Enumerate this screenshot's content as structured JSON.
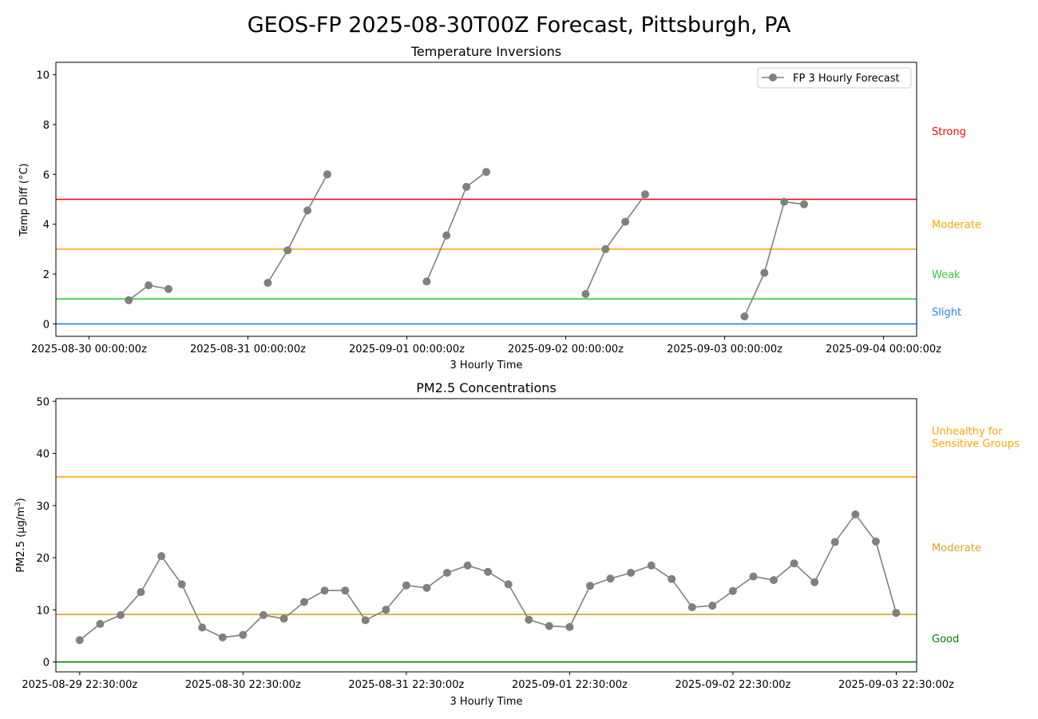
{
  "figure": {
    "title": "GEOS-FP 2025-08-30T00Z Forecast, Pittsburgh, PA"
  },
  "colors": {
    "series": "#808080",
    "axis": "#000000",
    "slight": "#1e88e5",
    "weak": "#2ecc40",
    "moderate": "#ffa500",
    "strong": "#ff0000",
    "good": "#008000",
    "moderate_pm": "#daa520",
    "usg": "#ffa500"
  },
  "chart_data": [
    {
      "type": "line",
      "title": "Temperature Inversions",
      "xlabel": "3 Hourly Time",
      "ylabel": "Temp Diff (°C)",
      "ylim": [
        -0.5,
        10.5
      ],
      "xlim": [
        "2025-08-29T19:00:00Z",
        "2025-09-04T05:00:00Z"
      ],
      "yticks": [
        0,
        2,
        4,
        6,
        8,
        10
      ],
      "xticks": [
        "2025-08-30 00:00:00z",
        "2025-08-31 00:00:00z",
        "2025-09-01 00:00:00z",
        "2025-09-02 00:00:00z",
        "2025-09-03 00:00:00z",
        "2025-09-04 00:00:00z"
      ],
      "legend": {
        "entries": [
          "FP 3 Hourly Forecast"
        ],
        "placement": "top-right"
      },
      "series": [
        {
          "name": "FP 3 Hourly Forecast",
          "segments": [
            [
              [
                "2025-08-30T06:00:00Z",
                0.95
              ],
              [
                "2025-08-30T09:00:00Z",
                1.55
              ],
              [
                "2025-08-30T12:00:00Z",
                1.4
              ]
            ],
            [
              [
                "2025-08-31T03:00:00Z",
                1.65
              ],
              [
                "2025-08-31T06:00:00Z",
                2.95
              ],
              [
                "2025-08-31T09:00:00Z",
                4.55
              ],
              [
                "2025-08-31T12:00:00Z",
                6.0
              ]
            ],
            [
              [
                "2025-09-01T03:00:00Z",
                1.7
              ],
              [
                "2025-09-01T06:00:00Z",
                3.55
              ],
              [
                "2025-09-01T09:00:00Z",
                5.5
              ],
              [
                "2025-09-01T12:00:00Z",
                6.1
              ]
            ],
            [
              [
                "2025-09-02T03:00:00Z",
                1.2
              ],
              [
                "2025-09-02T06:00:00Z",
                3.0
              ],
              [
                "2025-09-02T09:00:00Z",
                4.1
              ],
              [
                "2025-09-02T12:00:00Z",
                5.2
              ]
            ],
            [
              [
                "2025-09-03T03:00:00Z",
                0.3
              ],
              [
                "2025-09-03T06:00:00Z",
                2.05
              ],
              [
                "2025-09-03T09:00:00Z",
                4.9
              ],
              [
                "2025-09-03T12:00:00Z",
                4.8
              ]
            ]
          ]
        }
      ],
      "thresholds": [
        {
          "value": 0,
          "color_key": "slight"
        },
        {
          "value": 1,
          "color_key": "weak"
        },
        {
          "value": 3,
          "color_key": "moderate"
        },
        {
          "value": 5,
          "color_key": "strong"
        }
      ],
      "category_labels": [
        {
          "text": "Strong",
          "y": 7.75,
          "color_key": "strong"
        },
        {
          "text": "Moderate",
          "y": 4.0,
          "color_key": "moderate"
        },
        {
          "text": "Weak",
          "y": 2.0,
          "color_key": "weak"
        },
        {
          "text": "Slight",
          "y": 0.5,
          "color_key": "slight"
        }
      ],
      "grid": false
    },
    {
      "type": "line",
      "title": "PM2.5 Concentrations",
      "xlabel": "3 Hourly Time",
      "ylabel": "PM2.5 (µg/m",
      "ylabel_sup": "3",
      "ylabel_tail": ")",
      "ylim": [
        -1.9,
        50.5
      ],
      "xlim": [
        "2025-08-29T19:00:00Z",
        "2025-09-04T01:30:00Z"
      ],
      "yticks": [
        0,
        10,
        20,
        30,
        40,
        50
      ],
      "xticks": [
        "2025-08-29 22:30:00z",
        "2025-08-30 22:30:00z",
        "2025-08-31 22:30:00z",
        "2025-09-01 22:30:00z",
        "2025-09-02 22:30:00z",
        "2025-09-03 22:30:00z"
      ],
      "x_start": "2025-08-29T22:30:00Z",
      "x_step_hours": 3,
      "values": [
        4.2,
        7.3,
        9.0,
        13.4,
        20.3,
        14.9,
        6.6,
        4.7,
        5.2,
        9.0,
        8.3,
        11.5,
        13.7,
        13.7,
        8.0,
        10.0,
        14.7,
        14.2,
        17.1,
        18.5,
        17.3,
        14.9,
        8.1,
        6.9,
        6.7,
        14.6,
        16.0,
        17.1,
        18.5,
        15.9,
        10.5,
        10.8,
        13.6,
        16.4,
        15.7,
        18.9,
        15.3,
        23.0,
        28.3,
        23.1,
        9.4
      ],
      "thresholds": [
        {
          "value": 0,
          "color_key": "good"
        },
        {
          "value": 9.1,
          "color_key": "moderate_pm"
        },
        {
          "value": 35.5,
          "color_key": "usg"
        }
      ],
      "category_labels": [
        {
          "text": "Unhealthy for",
          "y": 44.4,
          "color_key": "usg"
        },
        {
          "text": "Sensitive Groups",
          "y": 42.0,
          "color_key": "usg"
        },
        {
          "text": "Moderate",
          "y": 22.0,
          "color_key": "moderate_pm"
        },
        {
          "text": "Good",
          "y": 4.5,
          "color_key": "good"
        }
      ],
      "grid": false
    }
  ]
}
